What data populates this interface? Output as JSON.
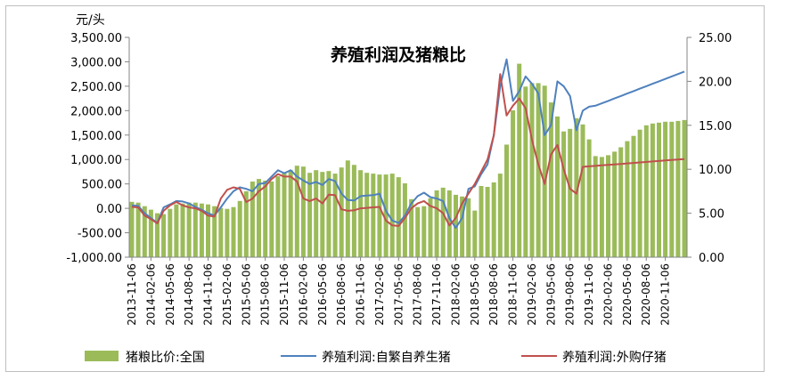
{
  "chart_data": {
    "type": "bar+line",
    "title": "养殖利润及猪粮比",
    "left_axis_unit": "元/头",
    "ylim_left": [
      -1000,
      3500
    ],
    "ylim_right": [
      0,
      25
    ],
    "left_ticks": [
      "3,500.00",
      "3,000.00",
      "2,500.00",
      "2,000.00",
      "1,500.00",
      "1,000.00",
      "500.00",
      "0.00",
      "-500.00",
      "-1,000.00"
    ],
    "right_ticks": [
      "25.00",
      "20.00",
      "15.00",
      "10.00",
      "5.00",
      "0.00"
    ],
    "x_ticks": [
      "2013-11-06",
      "2014-02-06",
      "2014-05-06",
      "2014-08-06",
      "2014-11-06",
      "2015-02-06",
      "2015-05-06",
      "2015-08-06",
      "2015-11-06",
      "2016-02-06",
      "2016-05-06",
      "2016-08-06",
      "2016-11-06",
      "2017-02-06",
      "2017-05-06",
      "2017-08-06",
      "2017-11-06",
      "2018-02-06",
      "2018-05-06",
      "2018-08-06",
      "2018-11-06",
      "2019-02-06",
      "2019-05-06",
      "2019-08-06",
      "2019-11-06",
      "2020-02-06",
      "2020-05-06",
      "2020-08-06",
      "2020-11-06"
    ],
    "x_months": [
      0,
      1,
      2,
      3,
      4,
      5,
      6,
      7,
      8,
      9,
      10,
      11,
      12,
      13,
      14,
      15,
      16,
      17,
      18,
      19,
      20,
      21,
      22,
      23,
      24,
      25,
      26,
      27,
      28,
      29,
      30,
      31,
      32,
      33,
      34,
      35,
      36,
      37,
      38,
      39,
      40,
      41,
      42,
      43,
      44,
      45,
      46,
      47,
      48,
      49,
      50,
      51,
      52,
      53,
      54,
      55,
      56,
      57,
      58,
      59,
      60,
      61,
      62,
      63,
      64,
      65,
      66,
      67,
      68,
      69,
      70,
      71,
      72,
      73,
      74,
      75,
      76,
      77,
      78,
      79,
      80,
      81,
      82,
      83,
      84,
      85,
      86,
      87
    ],
    "series": [
      {
        "name": "猪粮比价:全国",
        "type": "bar",
        "axis": "right",
        "color": "#9bbb59",
        "values": [
          6.3,
          6.2,
          5.8,
          5.4,
          5.0,
          4.9,
          5.5,
          6.0,
          6.1,
          6.2,
          6.2,
          6.1,
          6.0,
          5.8,
          5.6,
          5.5,
          5.7,
          6.4,
          7.5,
          8.6,
          8.9,
          8.7,
          8.6,
          9.2,
          9.6,
          9.9,
          10.4,
          10.3,
          9.6,
          9.9,
          9.7,
          9.8,
          9.5,
          10.2,
          11.0,
          10.5,
          9.9,
          9.6,
          9.5,
          9.4,
          9.4,
          9.5,
          9.1,
          8.4,
          6.6,
          5.7,
          5.8,
          6.7,
          7.6,
          7.9,
          7.6,
          7.1,
          6.9,
          6.7,
          5.3,
          8.1,
          8.0,
          8.5,
          9.5,
          12.8,
          16.7,
          22.0,
          19.4,
          19.8,
          19.8,
          19.5,
          17.6,
          16.0,
          14.3,
          14.6,
          15.8,
          15.1,
          13.4,
          11.5,
          11.4,
          11.6,
          12.0,
          12.5,
          13.2,
          13.8,
          14.5,
          15.0,
          15.2,
          15.3,
          15.4,
          15.4,
          15.5,
          15.6
        ]
      },
      {
        "name": "养殖利润:自繁自养生猪",
        "type": "line",
        "axis": "left",
        "color": "#4f81bd",
        "values": [
          60,
          50,
          -100,
          -200,
          -300,
          20,
          80,
          150,
          140,
          100,
          30,
          -30,
          -100,
          -150,
          20,
          200,
          350,
          430,
          400,
          350,
          500,
          520,
          650,
          780,
          720,
          780,
          650,
          570,
          500,
          540,
          480,
          600,
          560,
          300,
          170,
          160,
          250,
          260,
          270,
          300,
          -50,
          -250,
          -300,
          -150,
          100,
          250,
          320,
          230,
          200,
          150,
          -200,
          -400,
          -200,
          400,
          450,
          700,
          900,
          1500,
          2500,
          3050,
          2200,
          2400,
          2700,
          2550,
          2350,
          1500,
          1700,
          2600,
          2500,
          2300,
          1600,
          2000,
          2080,
          2100,
          2150,
          2200,
          2250,
          2300,
          2350,
          2400,
          2450,
          2500,
          2550,
          2600,
          2650,
          2700,
          2750,
          2800
        ]
      },
      {
        "name": "养殖利润:外购仔猪",
        "type": "line",
        "axis": "left",
        "color": "#c0504d",
        "values": [
          30,
          20,
          -150,
          -220,
          -310,
          -50,
          60,
          130,
          60,
          20,
          0,
          -50,
          -150,
          -170,
          200,
          380,
          430,
          400,
          130,
          200,
          350,
          450,
          600,
          700,
          650,
          650,
          550,
          200,
          150,
          200,
          100,
          280,
          270,
          -20,
          -50,
          -40,
          0,
          10,
          20,
          30,
          -250,
          -350,
          -360,
          -200,
          0,
          100,
          150,
          50,
          0,
          -100,
          -350,
          -200,
          100,
          300,
          500,
          750,
          1000,
          1500,
          2750,
          1900,
          2100,
          2250,
          2050,
          1400,
          900,
          500,
          1100,
          1300,
          800,
          400,
          300,
          850,
          860,
          870,
          880,
          890,
          900,
          910,
          920,
          930,
          940,
          950,
          960,
          970,
          980,
          990,
          1000,
          1010
        ]
      }
    ]
  }
}
